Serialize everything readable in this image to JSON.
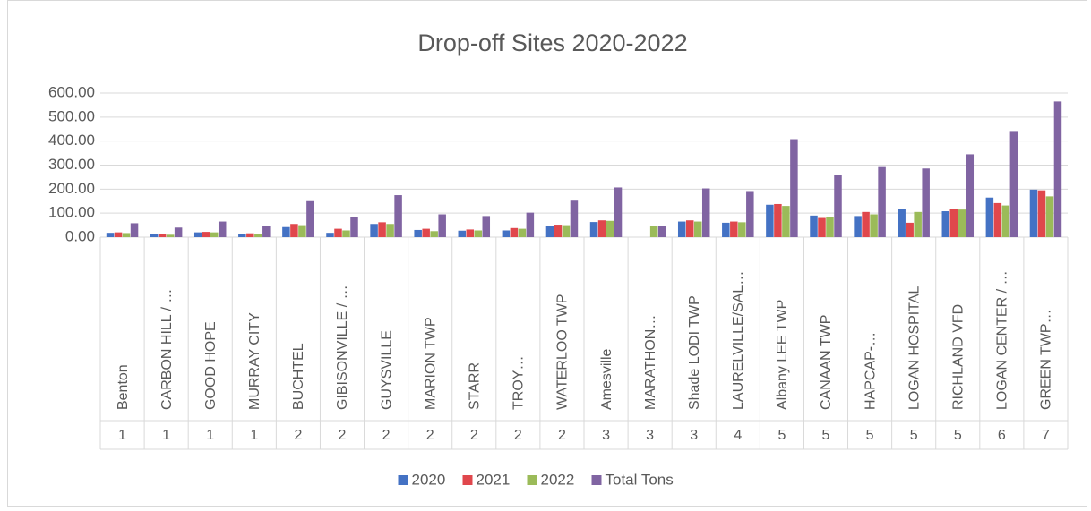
{
  "chart_data": {
    "type": "bar",
    "title": "Drop-off Sites 2020-2022",
    "categories": [
      "Benton",
      "CARBON HILL / …",
      "GOOD HOPE",
      "MURRAY CITY",
      "BUCHTEL",
      "GIBISONVILLE / …",
      "GUYSVILLE",
      "MARION TWP",
      "STARR",
      "TROY…",
      "WATERLOO TWP",
      "Amesville",
      "MARATHON…",
      "Shade LODI TWP",
      "LAURELVILLE/SAL…",
      "Albany LEE TWP",
      "CANAAN TWP",
      "HAPCAP-…",
      "LOGAN HOSPITAL",
      "RICHLAND VFD",
      "LOGAN CENTER / …",
      "GREEN TWP…"
    ],
    "groups": [
      1,
      1,
      1,
      1,
      2,
      2,
      2,
      2,
      2,
      2,
      2,
      3,
      3,
      3,
      4,
      5,
      5,
      5,
      5,
      5,
      6,
      7
    ],
    "series": [
      {
        "name": "2020",
        "color": "#4472c4",
        "values": [
          18,
          12,
          20,
          14,
          42,
          18,
          55,
          30,
          27,
          28,
          48,
          63,
          0,
          65,
          60,
          135,
          90,
          88,
          118,
          108,
          165,
          198
        ]
      },
      {
        "name": "2021",
        "color": "#e0474c",
        "values": [
          20,
          14,
          22,
          16,
          55,
          35,
          62,
          35,
          32,
          38,
          52,
          70,
          0,
          70,
          65,
          138,
          80,
          105,
          60,
          118,
          142,
          195
        ]
      },
      {
        "name": "2022",
        "color": "#9bbb59",
        "values": [
          17,
          10,
          20,
          14,
          50,
          28,
          55,
          25,
          28,
          35,
          50,
          68,
          45,
          65,
          62,
          130,
          85,
          95,
          105,
          115,
          132,
          170
        ]
      },
      {
        "name": "Total Tons",
        "color": "#8064a2",
        "values": [
          58,
          40,
          65,
          48,
          150,
          82,
          175,
          95,
          88,
          102,
          152,
          207,
          45,
          203,
          192,
          408,
          258,
          292,
          286,
          345,
          442,
          565
        ]
      }
    ],
    "ylim": [
      0,
      600
    ],
    "yticks": [
      {
        "value": 0,
        "label": "0.00"
      },
      {
        "value": 100,
        "label": "100.00"
      },
      {
        "value": 200,
        "label": "200.00"
      },
      {
        "value": 300,
        "label": "300.00"
      },
      {
        "value": 400,
        "label": "400.00"
      },
      {
        "value": 500,
        "label": "500.00"
      },
      {
        "value": 600,
        "label": "600.00"
      }
    ],
    "grid": true,
    "legend": "bottom"
  }
}
